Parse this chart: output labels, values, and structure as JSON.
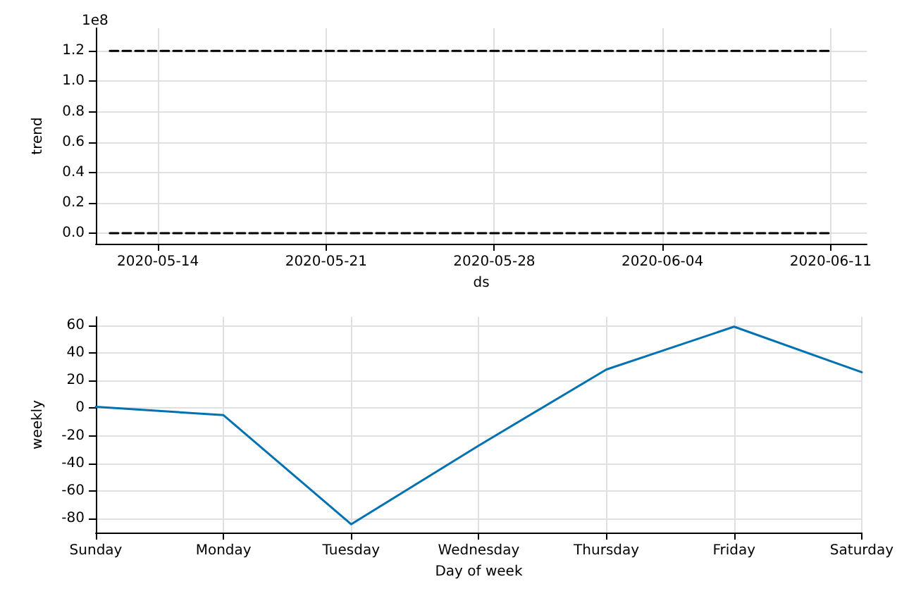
{
  "chart_data": [
    {
      "type": "line",
      "ylabel": "trend",
      "xlabel": "ds",
      "annotations": [
        "1e8"
      ],
      "series": [
        {
          "color": "#000000",
          "line_style": "dashed",
          "x": [
            "2020-05-12",
            "2020-06-11"
          ],
          "values": [
            1.2,
            1.2
          ]
        },
        {
          "color": "#000000",
          "line_style": "dashed",
          "x": [
            "2020-05-12",
            "2020-06-11"
          ],
          "values": [
            0,
            0
          ]
        }
      ],
      "xlim": [
        "2020-05-11T10:00",
        "2020-06-12T12:00"
      ],
      "xticks": [
        "2020-05-14",
        "2020-05-21",
        "2020-05-28",
        "2020-06-04",
        "2020-06-11"
      ],
      "ylim": [
        -0.07,
        1.35
      ],
      "yticks": [
        {
          "value": 0,
          "label": "0.0"
        },
        {
          "value": 0.2,
          "label": "0.2"
        },
        {
          "value": 0.4,
          "label": "0.4"
        },
        {
          "value": 0.6,
          "label": "0.6"
        },
        {
          "value": 0.8,
          "label": "0.8"
        },
        {
          "value": 1.0,
          "label": "1.0"
        },
        {
          "value": 1.2,
          "label": "1.2"
        }
      ],
      "grid": true,
      "marker": "none"
    },
    {
      "type": "line",
      "ylabel": "weekly",
      "xlabel": "Day of week",
      "categories": [
        "Sunday",
        "Monday",
        "Tuesday",
        "Wednesday",
        "Thursday",
        "Friday",
        "Saturday"
      ],
      "series": [
        {
          "color": "#0072b2",
          "line_style": "solid",
          "values": [
            1,
            -5,
            -84,
            -27,
            28,
            59,
            26
          ]
        }
      ],
      "ylim": [
        -90,
        66
      ],
      "yticks": [
        -80,
        -60,
        -40,
        -20,
        0,
        20,
        40,
        60
      ],
      "grid": true,
      "marker": "none"
    }
  ]
}
